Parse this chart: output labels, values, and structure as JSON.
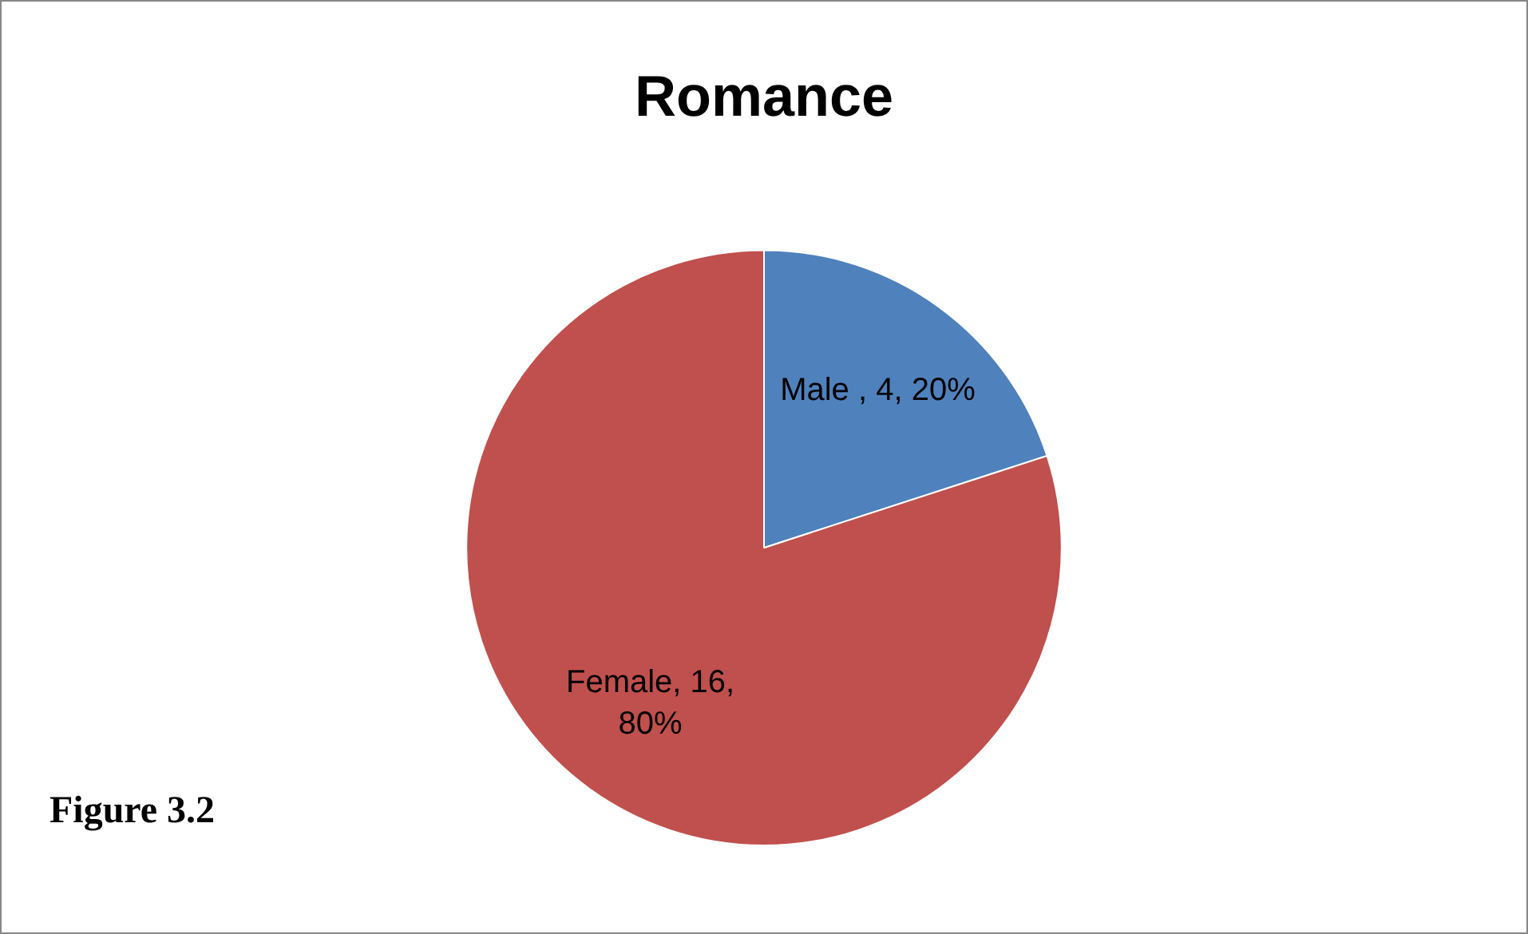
{
  "chart_data": {
    "type": "pie",
    "title": "Romance",
    "categories": [
      "Male ",
      "Female"
    ],
    "values": [
      4,
      16
    ],
    "colors": [
      "#4f81bd",
      "#c0504d"
    ],
    "value_labels": [
      "4, 20%",
      "16, 80%"
    ],
    "annotations": [
      "Figure 3.2"
    ]
  }
}
